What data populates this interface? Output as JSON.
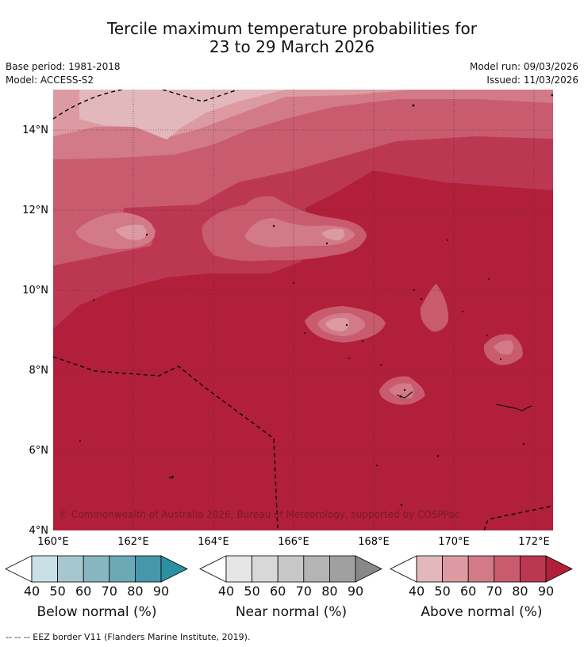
{
  "title": {
    "line1": "Tercile maximum temperature probabilities for",
    "line2": "23 to 29 March 2026"
  },
  "meta": {
    "base_period": "Base period: 1981-2018",
    "model": "Model: ACCESS-S2",
    "model_run": "Model run: 09/03/2026",
    "issued": "Issued: 11/03/2026"
  },
  "map": {
    "lon_labels": [
      "160°E",
      "162°E",
      "164°E",
      "166°E",
      "168°E",
      "170°E",
      "172°E"
    ],
    "lat_labels": [
      "14°N",
      "12°N",
      "10°N",
      "8°N",
      "6°N",
      "4°N"
    ],
    "copyright": "© Commonwealth of Australia 2026, Bureau of Meteorology, supported by COSPPac",
    "dominant_category": "Above normal",
    "colors": {
      "above_90": "#b21f3a",
      "above_80": "#bc3852",
      "above_70": "#c95b6e",
      "above_60": "#d27a87",
      "above_50": "#dc9aa3",
      "above_40": "#e3b8bd"
    }
  },
  "colorbars": [
    {
      "label": "Below normal (%)",
      "ticks": [
        "40",
        "50",
        "60",
        "70",
        "80",
        "90"
      ],
      "colors": [
        "#ffffff",
        "#c9e1e6",
        "#a5c8ce",
        "#87b6c0",
        "#6aaab7",
        "#4597a9",
        "#2b8fa2"
      ]
    },
    {
      "label": "Near normal (%)",
      "ticks": [
        "40",
        "50",
        "60",
        "70",
        "80",
        "90"
      ],
      "colors": [
        "#ffffff",
        "#e6e6e6",
        "#d8d8d8",
        "#c8c8c8",
        "#b4b4b4",
        "#a0a0a0",
        "#888888"
      ]
    },
    {
      "label": "Above normal (%)",
      "ticks": [
        "40",
        "50",
        "60",
        "70",
        "80",
        "90"
      ],
      "colors": [
        "#ffffff",
        "#e3b8bd",
        "#dc9aa3",
        "#d27a87",
        "#c95b6e",
        "#bc3852",
        "#b21f3a"
      ]
    }
  ],
  "footer": "-- -- -- EEZ border V11 (Flanders Marine Institute, 2019)."
}
